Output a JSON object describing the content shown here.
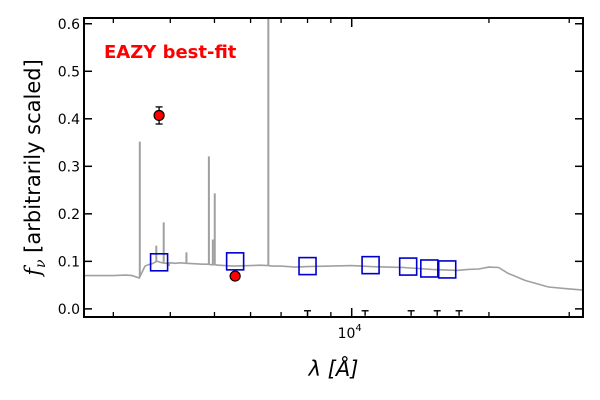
{
  "chart_data": {
    "type": "scatter",
    "title": "",
    "annotation": "EAZY best-fit",
    "annotation_color": "#ff0000",
    "xlabel": "λ [Å]",
    "ylabel": "f_ν [arbitrarily scaled]",
    "x_scale": "log",
    "xlim": [
      2600,
      32000
    ],
    "ylim": [
      -0.015,
      0.61
    ],
    "yticks": [
      0.0,
      0.1,
      0.2,
      0.3,
      0.4,
      0.5,
      0.6
    ],
    "ytick_labels": [
      "0.0",
      "0.1",
      "0.2",
      "0.3",
      "0.4",
      "0.5",
      "0.6"
    ],
    "xtick_major": [
      10000
    ],
    "xtick_major_label_base": "10",
    "xtick_major_label_exp": "4",
    "xtick_minor": [
      3000,
      4000,
      5000,
      6000,
      7000,
      8000,
      9000,
      20000,
      30000
    ],
    "grid": false,
    "legend": "none",
    "series": [
      {
        "kind": "model_spectrum",
        "color": "#a0a0a0",
        "x": [
          2600,
          3000,
          3200,
          3300,
          3420,
          3480,
          3520,
          3580,
          3650,
          3700,
          3730,
          3760,
          3800,
          3900,
          4000,
          4100,
          4200,
          4340,
          4500,
          4700,
          4861,
          4900,
          4959,
          5007,
          5100,
          5500,
          6000,
          6300,
          6563,
          6700,
          7000,
          7500,
          8000,
          9000,
          10000,
          11000,
          12000,
          13000,
          14000,
          15000,
          16000,
          17000,
          18000,
          19000,
          20000,
          21000,
          22000,
          24000,
          27000,
          30000,
          32000
        ],
        "y": [
          0.07,
          0.07,
          0.071,
          0.07,
          0.065,
          0.08,
          0.09,
          0.093,
          0.095,
          0.098,
          0.1,
          0.1,
          0.098,
          0.096,
          0.097,
          0.096,
          0.097,
          0.096,
          0.095,
          0.094,
          0.094,
          0.093,
          0.093,
          0.093,
          0.092,
          0.09,
          0.091,
          0.092,
          0.091,
          0.09,
          0.09,
          0.088,
          0.089,
          0.09,
          0.091,
          0.089,
          0.088,
          0.087,
          0.085,
          0.083,
          0.082,
          0.081,
          0.083,
          0.084,
          0.088,
          0.087,
          0.075,
          0.06,
          0.046,
          0.042,
          0.04
        ]
      },
      {
        "kind": "emission_lines",
        "color": "#a0a0a0",
        "x": [
          3429,
          3727,
          3869,
          3970,
          4102,
          4340,
          4861,
          4959,
          5007,
          6563
        ],
        "y": [
          0.352,
          0.133,
          0.182,
          0.09,
          0.096,
          0.119,
          0.321,
          0.146,
          0.243,
          0.61
        ]
      },
      {
        "kind": "photometry",
        "marker": "circle",
        "color": "#ff0000",
        "edge_color": "#000000",
        "x": [
          3780,
          5550
        ],
        "y": [
          0.407,
          0.069
        ],
        "yerr": [
          0.018,
          0.004
        ]
      },
      {
        "kind": "model_fluxes",
        "marker": "square",
        "color": "#0000cc",
        "x": [
          3780,
          5550,
          8000,
          11000,
          13300,
          14800,
          16200
        ],
        "y": [
          0.098,
          0.1,
          0.09,
          0.092,
          0.089,
          0.085,
          0.083
        ]
      },
      {
        "kind": "upper_limits",
        "marker": "cap",
        "color": "#000000",
        "x": [
          8000,
          10700,
          13500,
          15400,
          17200
        ],
        "y": [
          -0.004,
          -0.004,
          -0.004,
          -0.004,
          -0.004
        ]
      }
    ]
  }
}
